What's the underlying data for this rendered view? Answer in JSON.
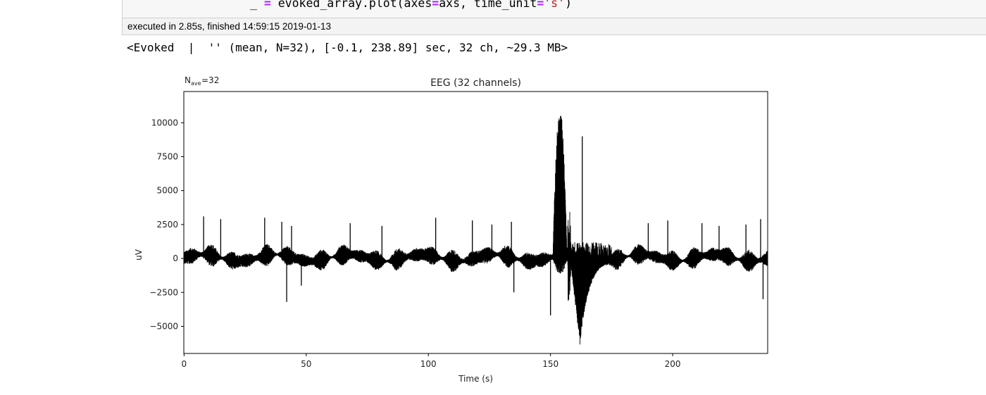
{
  "notebook": {
    "code_parts": [
      {
        "text": "_ ",
        "cls": ""
      },
      {
        "text": "=",
        "cls": "op"
      },
      {
        "text": " evoked_array.plot(axes",
        "cls": ""
      },
      {
        "text": "=",
        "cls": "op"
      },
      {
        "text": "axs, time_unit",
        "cls": ""
      },
      {
        "text": "=",
        "cls": "op"
      },
      {
        "text": "'s'",
        "cls": "str"
      },
      {
        "text": ")",
        "cls": ""
      }
    ],
    "execution_info": "executed in 2.85s, finished 14:59:15 2019-01-13",
    "output_repr": "<Evoked  |  '' (mean, N=32), [-0.1, 238.89] sec, 32 ch, ~29.3 MB>"
  },
  "chart_data": {
    "type": "line",
    "title": "EEG (32 channels)",
    "nave_label_main": "N",
    "nave_label_sub": "ave",
    "nave_value": "=32",
    "xlabel": "Time (s)",
    "ylabel": "uV",
    "xlim": [
      -0.1,
      238.89
    ],
    "ylim": [
      -7000,
      12300
    ],
    "xticks": [
      0,
      50,
      100,
      150,
      200
    ],
    "yticks": [
      -5000,
      -2500,
      0,
      2500,
      5000,
      7500,
      10000
    ],
    "ytick_labels": [
      "−5000",
      "−2500",
      "0",
      "2500",
      "5000",
      "7500",
      "10000"
    ],
    "line_color": "#000000",
    "grid": false,
    "baseline_band": [
      -800,
      900
    ],
    "spikes": [
      {
        "t": 8,
        "v": 3100
      },
      {
        "t": 15,
        "v": 2900
      },
      {
        "t": 33,
        "v": 3000
      },
      {
        "t": 40,
        "v": 2700
      },
      {
        "t": 42,
        "v": -3200
      },
      {
        "t": 44,
        "v": 2400
      },
      {
        "t": 48,
        "v": -2000
      },
      {
        "t": 68,
        "v": 2600
      },
      {
        "t": 81,
        "v": 2400
      },
      {
        "t": 103,
        "v": 3000
      },
      {
        "t": 118,
        "v": 2800
      },
      {
        "t": 126,
        "v": 2500
      },
      {
        "t": 134,
        "v": 2700
      },
      {
        "t": 135,
        "v": -2500
      },
      {
        "t": 150,
        "v": -4200
      },
      {
        "t": 163,
        "v": 9000
      },
      {
        "t": 190,
        "v": 2600
      },
      {
        "t": 198,
        "v": 2800
      },
      {
        "t": 212,
        "v": 2600
      },
      {
        "t": 219,
        "v": 2400
      },
      {
        "t": 230,
        "v": 2500
      },
      {
        "t": 236,
        "v": 2900
      },
      {
        "t": 237,
        "v": -3000
      }
    ],
    "burst": {
      "t_start": 151,
      "t_end": 157,
      "peak": 11200,
      "trough": -4300
    },
    "slow_wave": {
      "t_start": 158,
      "t_end": 175,
      "trough": -6400,
      "t_trough": 162
    }
  }
}
